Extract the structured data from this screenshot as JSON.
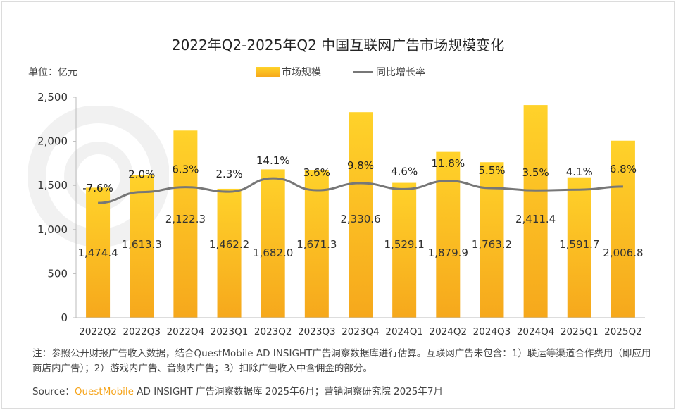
{
  "title": "2022年Q2-2025年Q2 中国互联网广告市场规模变化",
  "unit_label": "单位：亿元",
  "legend": {
    "bar": "市场规模",
    "line": "同比增长率"
  },
  "colors": {
    "bar_top": "#ffd22a",
    "bar_bottom": "#f6a81c",
    "line": "#777777",
    "brand": "#f5a318"
  },
  "chart_data": {
    "type": "bar",
    "categories": [
      "2022Q2",
      "2022Q3",
      "2022Q4",
      "2023Q1",
      "2023Q2",
      "2023Q3",
      "2023Q4",
      "2024Q1",
      "2024Q2",
      "2024Q3",
      "2024Q4",
      "2025Q1",
      "2025Q2"
    ],
    "series": [
      {
        "name": "市场规模",
        "type": "bar",
        "values": [
          1474.4,
          1613.3,
          2122.3,
          1462.2,
          1682.0,
          1671.3,
          2330.6,
          1529.1,
          1879.9,
          1763.2,
          2411.4,
          1591.7,
          2006.8
        ],
        "labels": [
          "1,474.4",
          "1,613.3",
          "2,122.3",
          "1,462.2",
          "1,682.0",
          "1,671.3",
          "2,330.6",
          "1,529.1",
          "1,879.9",
          "1,763.2",
          "2,411.4",
          "1,591.7",
          "2,006.8"
        ]
      },
      {
        "name": "同比增长率",
        "type": "line",
        "values": [
          -7.6,
          2.0,
          6.3,
          2.3,
          14.1,
          3.6,
          9.8,
          4.6,
          11.8,
          5.5,
          3.5,
          4.1,
          6.8
        ],
        "labels": [
          "-7.6%",
          "2.0%",
          "6.3%",
          "2.3%",
          "14.1%",
          "3.6%",
          "9.8%",
          "4.6%",
          "11.8%",
          "5.5%",
          "3.5%",
          "4.1%",
          "6.8%"
        ]
      }
    ],
    "y_ticks": [
      "0",
      "500",
      "1,000",
      "1,500",
      "2,000",
      "2,500"
    ],
    "ylim": [
      0,
      2500
    ],
    "grid": false
  },
  "note": "注：参照公开财报广告收入数据，结合QuestMobile AD INSIGHT广告洞察数据库进行估算。互联网广告未包含：1）联运等渠道合作费用（即应用商店内广告）；2）游戏内广告、音频内广告；3）扣除广告收入中含佣金的部分。",
  "source": {
    "prefix": "Source：",
    "brand": "QuestMobile",
    "rest": " AD INSIGHT 广告洞察数据库 2025年6月；营销洞察研究院 2025年7月"
  }
}
